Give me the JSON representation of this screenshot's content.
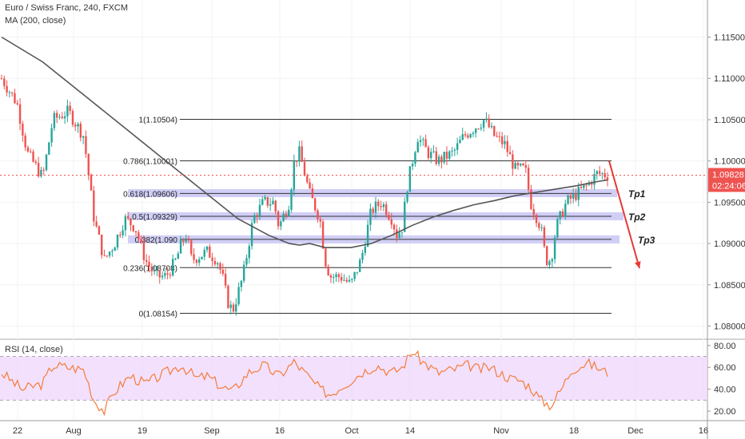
{
  "header": {
    "title": "Euro / Swiss Franc, 240, FXCM",
    "ma_legend": "MA (200, close)",
    "rsi_legend": "RSI (14, close)"
  },
  "price_badge": {
    "price": "1.09828",
    "countdown": "02:24:06"
  },
  "colors": {
    "up": "#26a69a",
    "down": "#ef5350",
    "ma": "#555555",
    "rsi": "#f57c3a",
    "band": "#c9c6f5",
    "rsi_band": "#efd8fb",
    "arrow": "#e53935",
    "price_badge": "#ef5350"
  },
  "chart_data": [
    {
      "type": "candlestick",
      "title": "Euro / Swiss Franc, 240, FXCM",
      "x_tick_labels": [
        "22",
        "Aug",
        "19",
        "Sep",
        "16",
        "Oct",
        "14",
        "Nov",
        "18",
        "Dec",
        "16"
      ],
      "y_tick_labels": [
        "1.08000",
        "1.08500",
        "1.09000",
        "1.09500",
        "1.10000",
        "1.10500",
        "1.11000",
        "1.11500"
      ],
      "ylim": [
        1.0785,
        1.1195
      ],
      "current_price": 1.09828,
      "close_path": [
        [
          0,
          1.11
        ],
        [
          3,
          1.107
        ],
        [
          5,
          1.101
        ],
        [
          8,
          1.098
        ],
        [
          10,
          1.105
        ],
        [
          13,
          1.106
        ],
        [
          16,
          1.103
        ],
        [
          18,
          1.093
        ],
        [
          20,
          1.088
        ],
        [
          22,
          1.09
        ],
        [
          24,
          1.093
        ],
        [
          26,
          1.092
        ],
        [
          28,
          1.088
        ],
        [
          30,
          1.086
        ],
        [
          32,
          1.086
        ],
        [
          34,
          1.088
        ],
        [
          35,
          1.09
        ],
        [
          36,
          1.091
        ],
        [
          37,
          1.088
        ],
        [
          40,
          1.089
        ],
        [
          42,
          1.088
        ],
        [
          43,
          1.086
        ],
        [
          44,
          1.083
        ],
        [
          45,
          1.0818
        ],
        [
          47,
          1.086
        ],
        [
          49,
          1.093
        ],
        [
          51,
          1.095
        ],
        [
          53,
          1.095
        ],
        [
          54,
          1.092
        ],
        [
          56,
          1.095
        ],
        [
          57,
          1.1
        ],
        [
          58,
          1.101
        ],
        [
          60,
          1.096
        ],
        [
          62,
          1.093
        ],
        [
          63,
          1.088
        ],
        [
          64,
          1.086
        ],
        [
          66,
          1.086
        ],
        [
          68,
          1.085
        ],
        [
          70,
          1.088
        ],
        [
          72,
          1.094
        ],
        [
          74,
          1.095
        ],
        [
          76,
          1.093
        ],
        [
          77,
          1.091
        ],
        [
          78,
          1.092
        ],
        [
          79,
          1.097
        ],
        [
          81,
          1.103
        ],
        [
          83,
          1.101
        ],
        [
          85,
          1.1
        ],
        [
          88,
          1.101
        ],
        [
          90,
          1.103
        ],
        [
          92,
          1.104
        ],
        [
          94,
          1.105
        ],
        [
          96,
          1.103
        ],
        [
          98,
          1.102
        ],
        [
          100,
          1.099
        ],
        [
          102,
          1.099
        ],
        [
          103,
          1.095
        ],
        [
          105,
          1.092
        ],
        [
          106,
          1.088
        ],
        [
          107,
          1.088
        ],
        [
          108,
          1.092
        ],
        [
          110,
          1.095
        ],
        [
          112,
          1.096
        ],
        [
          114,
          1.097
        ],
        [
          116,
          1.0985
        ],
        [
          118,
          1.0983
        ]
      ],
      "moving_average": {
        "name": "MA (200, close)",
        "points": [
          [
            0,
            1.115
          ],
          [
            8,
            1.112
          ],
          [
            16,
            1.108
          ],
          [
            24,
            1.104
          ],
          [
            32,
            1.1
          ],
          [
            40,
            1.096
          ],
          [
            46,
            1.093
          ],
          [
            52,
            1.091
          ],
          [
            56,
            1.09
          ],
          [
            58,
            1.0898
          ],
          [
            60,
            1.09
          ],
          [
            63,
            1.0895
          ],
          [
            68,
            1.0895
          ],
          [
            72,
            1.09
          ],
          [
            76,
            1.091
          ],
          [
            80,
            1.0922
          ],
          [
            84,
            1.0932
          ],
          [
            88,
            1.094
          ],
          [
            92,
            1.0947
          ],
          [
            96,
            1.0952
          ],
          [
            100,
            1.0958
          ],
          [
            104,
            1.0962
          ],
          [
            108,
            1.0966
          ],
          [
            112,
            1.097
          ],
          [
            116,
            1.0975
          ],
          [
            118,
            1.0977
          ]
        ]
      },
      "fibonacci_levels": [
        {
          "label": "1(1.10504)",
          "value": 1.10504
        },
        {
          "label": "0.786(1.10001)",
          "value": 1.10001
        },
        {
          "label": "0.618(1.09606)",
          "value": 1.09606
        },
        {
          "label": "0.5(1.09329)",
          "value": 1.09329
        },
        {
          "label": "0.382(1.090",
          "value": 1.0905
        },
        {
          "label": "0.236(1.08708)",
          "value": 1.08708
        },
        {
          "label": "0(1.08154)",
          "value": 1.08154
        }
      ],
      "target_zones": [
        {
          "label": "Tp1",
          "center": 1.0961
        },
        {
          "label": "Tp2",
          "center": 1.0933
        },
        {
          "label": "Tp3",
          "center": 1.0905
        }
      ],
      "arrow": {
        "from": 1.1,
        "to": 1.087
      }
    },
    {
      "type": "line",
      "title": "RSI (14, close)",
      "y_tick_labels": [
        "20.00",
        "40.00",
        "60.00",
        "80.00"
      ],
      "ylim": [
        12,
        85
      ],
      "band": [
        30,
        70
      ],
      "points": [
        [
          0,
          55
        ],
        [
          4,
          40
        ],
        [
          8,
          45
        ],
        [
          10,
          62
        ],
        [
          13,
          60
        ],
        [
          16,
          58
        ],
        [
          18,
          30
        ],
        [
          20,
          20
        ],
        [
          22,
          38
        ],
        [
          25,
          52
        ],
        [
          28,
          45
        ],
        [
          32,
          55
        ],
        [
          35,
          62
        ],
        [
          38,
          50
        ],
        [
          40,
          52
        ],
        [
          43,
          42
        ],
        [
          45,
          38
        ],
        [
          48,
          55
        ],
        [
          51,
          62
        ],
        [
          54,
          52
        ],
        [
          57,
          65
        ],
        [
          59,
          55
        ],
        [
          62,
          40
        ],
        [
          64,
          35
        ],
        [
          66,
          42
        ],
        [
          68,
          48
        ],
        [
          70,
          55
        ],
        [
          73,
          62
        ],
        [
          76,
          55
        ],
        [
          78,
          60
        ],
        [
          80,
          75
        ],
        [
          82,
          65
        ],
        [
          85,
          55
        ],
        [
          88,
          58
        ],
        [
          91,
          62
        ],
        [
          93,
          58
        ],
        [
          95,
          60
        ],
        [
          97,
          55
        ],
        [
          99,
          50
        ],
        [
          101,
          48
        ],
        [
          103,
          42
        ],
        [
          105,
          30
        ],
        [
          107,
          25
        ],
        [
          109,
          40
        ],
        [
          111,
          58
        ],
        [
          114,
          64
        ],
        [
          116,
          60
        ],
        [
          118,
          55
        ]
      ]
    }
  ]
}
